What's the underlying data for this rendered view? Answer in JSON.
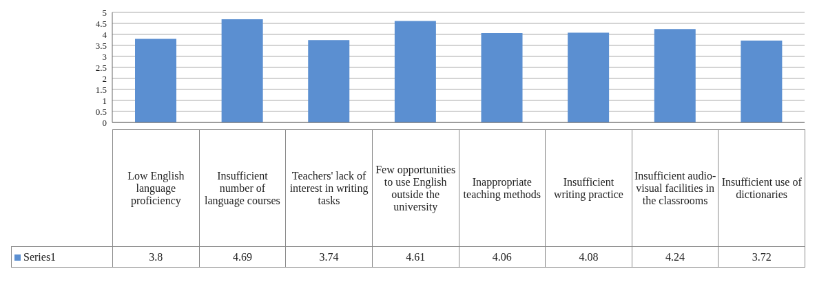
{
  "chart_data": {
    "type": "bar",
    "categories": [
      "Low English language proficiency",
      "Insufficient number of language courses",
      "Teachers' lack of interest in writing tasks",
      "Few opportunities to use English outside the university",
      "Inappropriate teaching methods",
      "Insufficient writing practice",
      "Insufficient audio-visual facilities in the classrooms",
      "Insufficient use of dictionaries"
    ],
    "series": [
      {
        "name": "Series1",
        "color": "#5b8fd1",
        "values": [
          3.8,
          4.69,
          3.74,
          4.61,
          4.06,
          4.08,
          4.24,
          3.72
        ]
      }
    ],
    "ylim": [
      0,
      5
    ],
    "yticks": [
      0,
      0.5,
      1,
      1.5,
      2,
      2.5,
      3,
      3.5,
      4,
      4.5,
      5
    ],
    "grid": "y",
    "legend": "bottom",
    "data_labels": true
  }
}
